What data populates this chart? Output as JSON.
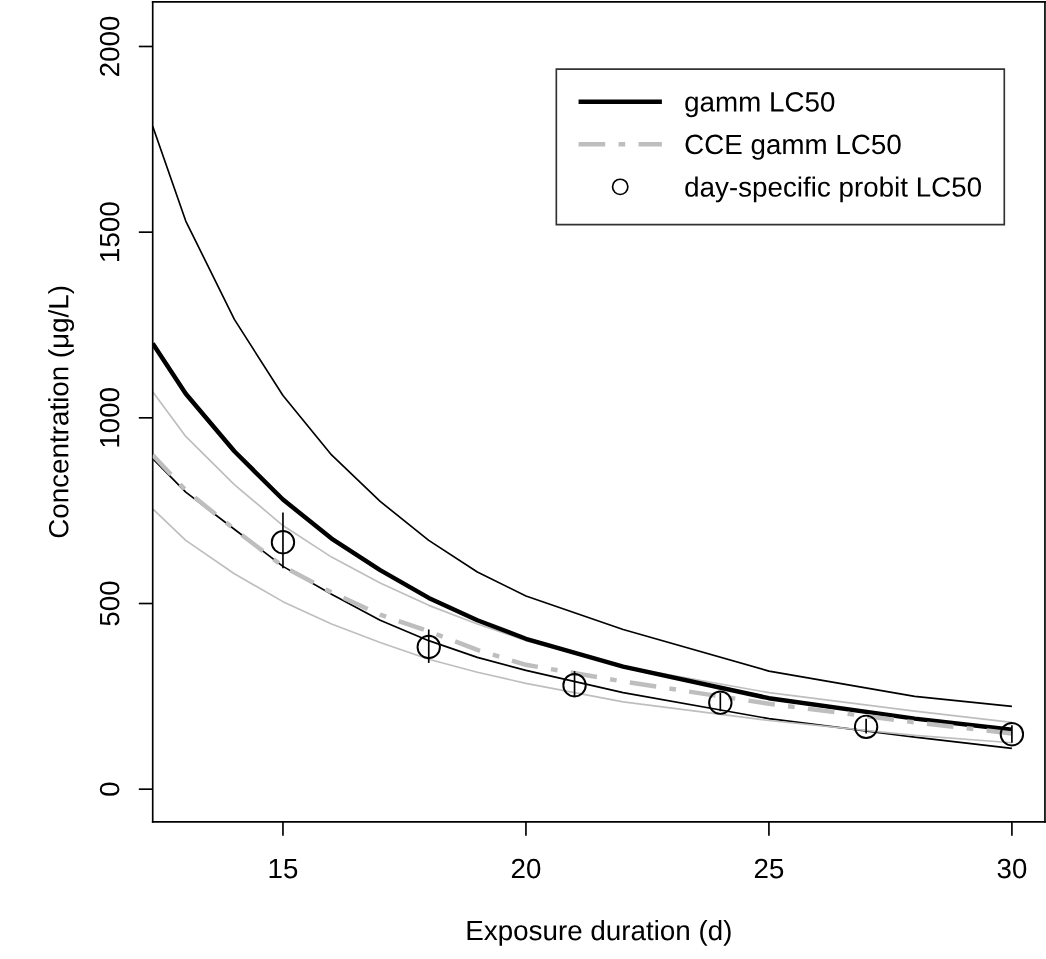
{
  "chart_data": {
    "type": "line",
    "xlabel": "Exposure duration (d)",
    "ylabel": "Concentration (μg/L)",
    "xlim": [
      12.32,
      30.68
    ],
    "ylim": [
      -88,
      2120
    ],
    "xticks": [
      15,
      20,
      25,
      30
    ],
    "yticks": [
      0,
      500,
      1000,
      1500,
      2000
    ],
    "grid": false,
    "legend": "top right",
    "marker": "none",
    "x": [
      12.32,
      13,
      14,
      15,
      16,
      17,
      18,
      19,
      20,
      22,
      25,
      28,
      30
    ],
    "series": [
      {
        "color": "#000000",
        "line_style": "solid",
        "values": [
          1785,
          1530,
          1265,
          1060,
          900,
          775,
          670,
          585,
          520,
          430,
          318,
          250,
          223
        ]
      },
      {
        "color": "#bebebe",
        "line_style": "solid",
        "values": [
          1070,
          950,
          820,
          710,
          625,
          555,
          495,
          445,
          400,
          330,
          260,
          210,
          180
        ]
      },
      {
        "color": "#000000",
        "line_style": "solid",
        "values": [
          890,
          800,
          700,
          600,
          525,
          455,
          400,
          355,
          320,
          260,
          190,
          140,
          110
        ]
      },
      {
        "color": "#bebebe",
        "line_style": "solid",
        "values": [
          755,
          670,
          580,
          505,
          445,
          395,
          350,
          315,
          285,
          235,
          185,
          145,
          125
        ]
      },
      {
        "name": "gamm LC50",
        "color": "#000000",
        "line_style": "solid",
        "values": [
          1200,
          1065,
          910,
          780,
          675,
          590,
          515,
          455,
          405,
          330,
          245,
          190,
          160
        ]
      },
      {
        "name": "CCE gamm LC50",
        "color": "#bebebe",
        "line_style": "dashed",
        "values": [
          900,
          805,
          700,
          600,
          530,
          470,
          425,
          375,
          335,
          290,
          230,
          180,
          150
        ]
      },
      {
        "name": "day-specific probit LC50",
        "type": "scatter",
        "marker": "circle",
        "color": "#000000",
        "x": [
          15,
          18,
          21,
          24,
          27,
          30
        ],
        "values": [
          665,
          383,
          280,
          233,
          168,
          148
        ],
        "errors": [
          [
            595,
            745
          ],
          [
            340,
            430
          ],
          [
            250,
            318
          ],
          [
            210,
            260
          ],
          [
            150,
            190
          ],
          [
            125,
            172
          ]
        ]
      }
    ]
  }
}
